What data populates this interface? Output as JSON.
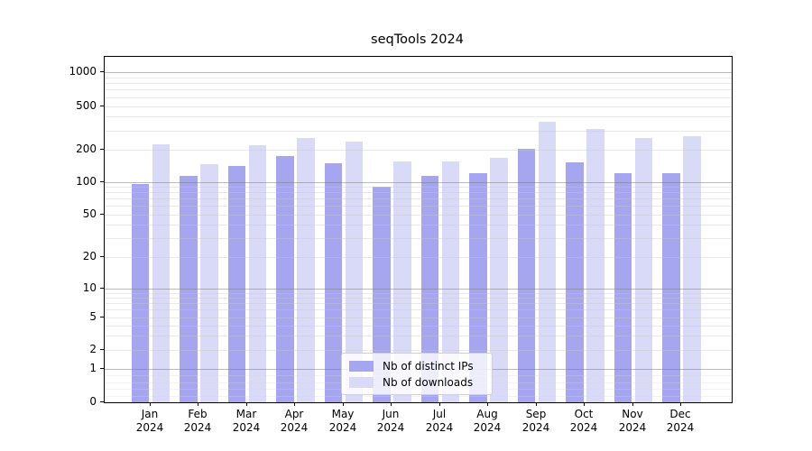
{
  "title": "seqTools 2024",
  "chart_data": {
    "type": "bar",
    "title": "seqTools 2024",
    "categories": [
      "Jan",
      "Feb",
      "Mar",
      "Apr",
      "May",
      "Jun",
      "Jul",
      "Aug",
      "Sep",
      "Oct",
      "Nov",
      "Dec"
    ],
    "category_year": "2024",
    "series": [
      {
        "name": "Nb of distinct IPs",
        "color": "#a6a6f0",
        "values": [
          97,
          114,
          142,
          175,
          150,
          90,
          115,
          122,
          204,
          152,
          122,
          122
        ]
      },
      {
        "name": "Nb of downloads",
        "color": "#d9d9f8",
        "values": [
          225,
          146,
          221,
          258,
          237,
          156,
          155,
          168,
          360,
          310,
          254,
          264
        ]
      }
    ],
    "xlabel": "",
    "ylabel": "",
    "yscale": "symlog",
    "yticks": [
      0,
      1,
      2,
      5,
      10,
      20,
      50,
      100,
      200,
      500,
      1000
    ],
    "ylim": [
      0,
      1400
    ],
    "grid": "major and minor horizontal gridlines",
    "legend_position": "lower center"
  }
}
